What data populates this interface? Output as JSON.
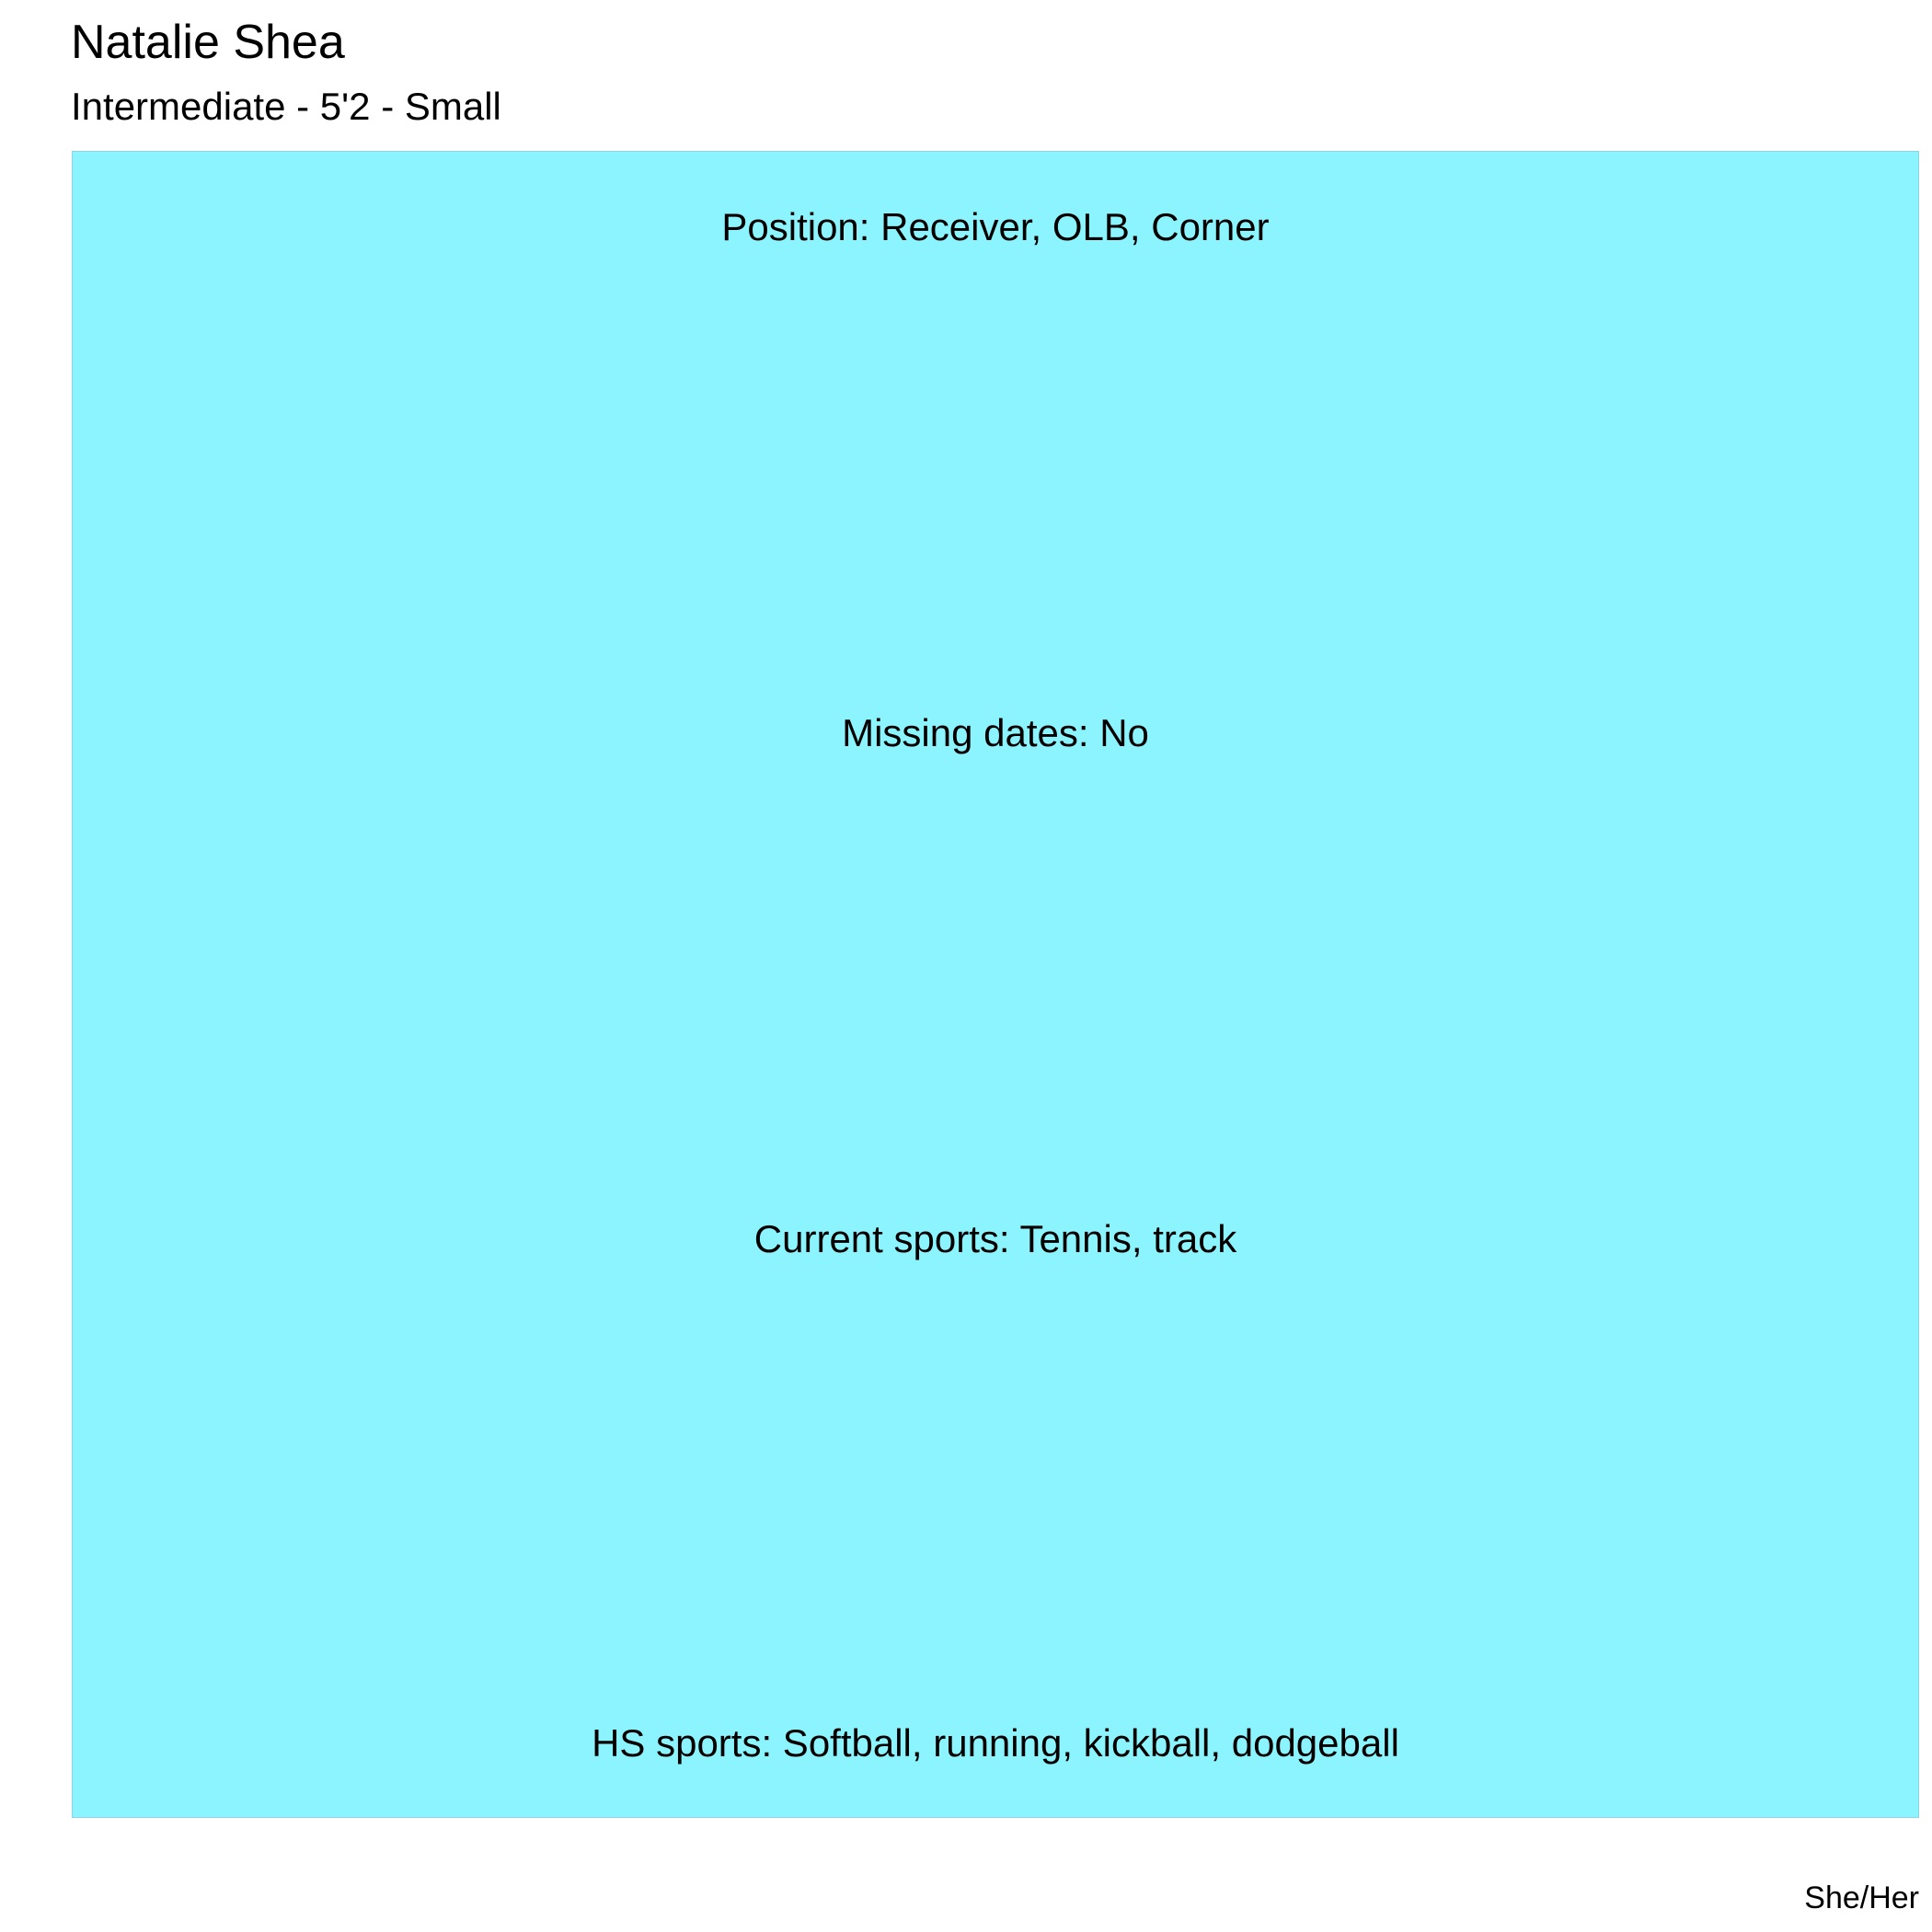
{
  "title": "Natalie Shea",
  "subtitle": "Intermediate - 5'2 - Small",
  "panel": {
    "background_color": "#8cf4fe",
    "border_color": "#8fd3e6",
    "lines": [
      "Position: Receiver, OLB, Corner",
      "Missing dates: No",
      "Current sports: Tennis, track",
      "HS sports: Softball, running, kickball, dodgeball"
    ]
  },
  "caption": "She/Her"
}
